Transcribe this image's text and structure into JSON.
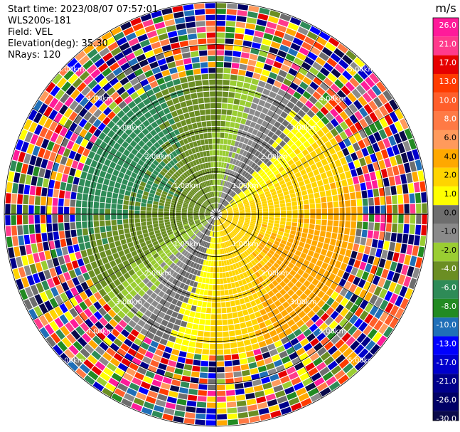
{
  "header": {
    "start_time": "Start time: 2023/08/07 07:57:01",
    "instrument": "WLS200s-181",
    "field": "Field: VEL",
    "elevation": "Elevation(deg): 35.30",
    "nrays": "NRays: 120"
  },
  "colorbar": {
    "unit": "m/s",
    "ticks": [
      "26.0",
      "21.0",
      "17.0",
      "13.0",
      "10.0",
      "8.0",
      "6.0",
      "4.0",
      "2.0",
      "1.0",
      "0.0",
      "-1.0",
      "-2.0",
      "-4.0",
      "-6.0",
      "-8.0",
      "-10.0",
      "-13.0",
      "-17.0",
      "-21.0",
      "-26.0",
      "-30.0"
    ],
    "colors": [
      "#ff1b9a",
      "#ff3a8c",
      "#e60000",
      "#ff3b00",
      "#ff5e2a",
      "#ff7a45",
      "#ff9a5c",
      "#ffa800",
      "#ffd400",
      "#ffff00",
      "#6e6e6e",
      "#8a8a8a",
      "#9acd32",
      "#6b8e23",
      "#2e8b57",
      "#228b22",
      "#1f6fb8",
      "#0000ff",
      "#0000cd",
      "#00008b",
      "#000066",
      "#0a0a4a"
    ]
  },
  "chart_data": {
    "type": "polar-ppi",
    "ring_labels": [
      "1.00km",
      "2.00km",
      "3.00km",
      "4.00km",
      "5.00km"
    ],
    "range_max_km": 5.0,
    "n_rays": 120,
    "elevation_deg": 35.3,
    "field": "VEL",
    "unit": "m/s",
    "vmin": -30.0,
    "vmax": 30.0,
    "pattern": {
      "receding_bearing_deg": 120,
      "approaching_bearing_deg": 300,
      "max_abs_velocity": 5.0,
      "clean_range_km": 3.3
    }
  }
}
